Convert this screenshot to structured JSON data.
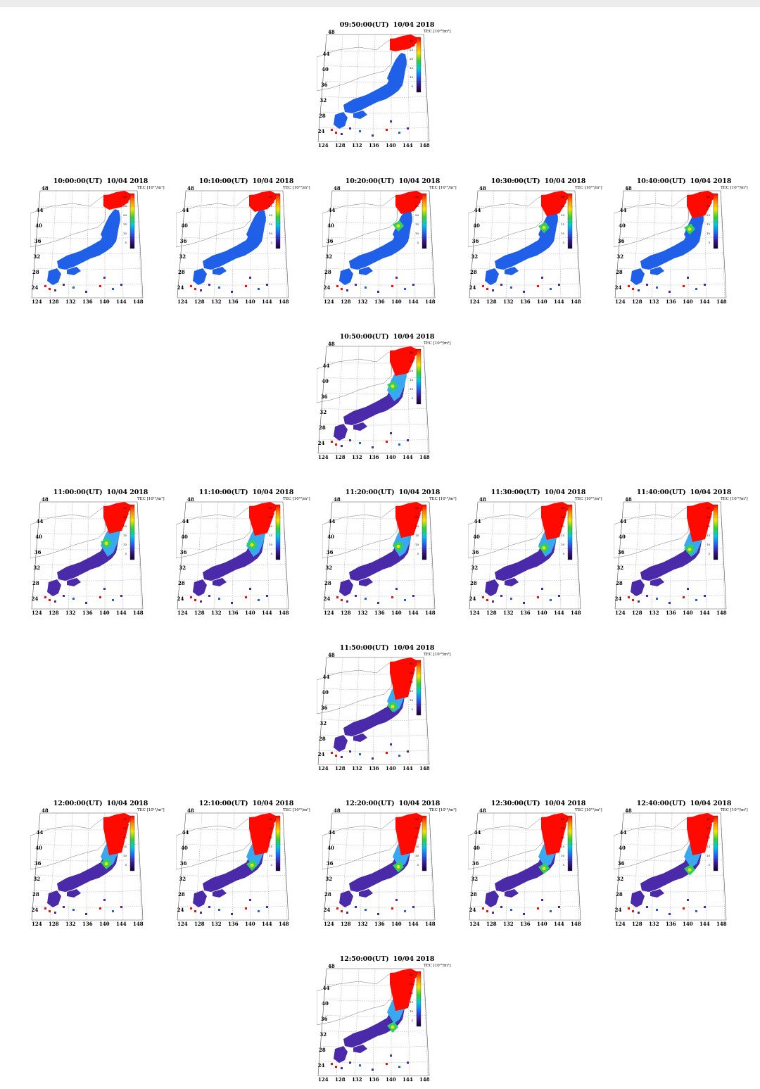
{
  "panels": [
    {
      "time": "09:50:00(UT)",
      "date": "10/04 2018",
      "stage": 0
    },
    {
      "time": "10:00:00(UT)",
      "date": "10/04 2018",
      "stage": 1
    },
    {
      "time": "10:10:00(UT)",
      "date": "10/04 2018",
      "stage": 2
    },
    {
      "time": "10:20:00(UT)",
      "date": "10/04 2018",
      "stage": 3
    },
    {
      "time": "10:30:00(UT)",
      "date": "10/04 2018",
      "stage": 4
    },
    {
      "time": "10:40:00(UT)",
      "date": "10/04 2018",
      "stage": 5
    },
    {
      "time": "10:50:00(UT)",
      "date": "10/04 2018",
      "stage": 6
    },
    {
      "time": "11:00:00(UT)",
      "date": "10/04 2018",
      "stage": 7
    },
    {
      "time": "11:10:00(UT)",
      "date": "10/04 2018",
      "stage": 8
    },
    {
      "time": "11:20:00(UT)",
      "date": "10/04 2018",
      "stage": 9
    },
    {
      "time": "11:30:00(UT)",
      "date": "10/04 2018",
      "stage": 10
    },
    {
      "time": "11:40:00(UT)",
      "date": "10/04 2018",
      "stage": 11
    },
    {
      "time": "11:50:00(UT)",
      "date": "10/04 2018",
      "stage": 12
    },
    {
      "time": "12:00:00(UT)",
      "date": "10/04 2018",
      "stage": 13
    },
    {
      "time": "12:10:00(UT)",
      "date": "10/04 2018",
      "stage": 14
    },
    {
      "time": "12:20:00(UT)",
      "date": "10/04 2018",
      "stage": 15
    },
    {
      "time": "12:30:00(UT)",
      "date": "10/04 2018",
      "stage": 16
    },
    {
      "time": "12:40:00(UT)",
      "date": "10/04 2018",
      "stage": 17
    },
    {
      "time": "12:50:00(UT)",
      "date": "10/04 2018",
      "stage": 18
    }
  ],
  "map": {
    "lat_labels": [
      "48",
      "44",
      "40",
      "36",
      "32",
      "28",
      "24"
    ],
    "lon_labels": [
      "124",
      "128",
      "132",
      "136",
      "140",
      "144",
      "148"
    ]
  },
  "colorbar": {
    "label": "TEC [10¹⁶/m²]",
    "ticks": [
      "30",
      "25",
      "20",
      "15",
      "10",
      "5"
    ],
    "colors": [
      "#ff0000",
      "#ff8a00",
      "#f2e600",
      "#30d230",
      "#00c8e0",
      "#1e64ff",
      "#3a1890",
      "#120030"
    ]
  },
  "colors": {
    "background": "#ffffff",
    "low": "#4a2aa8",
    "mid_blue": "#2060e8",
    "light_blue": "#38a8f0",
    "green": "#30d060",
    "yellow": "#f0e000",
    "red": "#ff0a00"
  }
}
